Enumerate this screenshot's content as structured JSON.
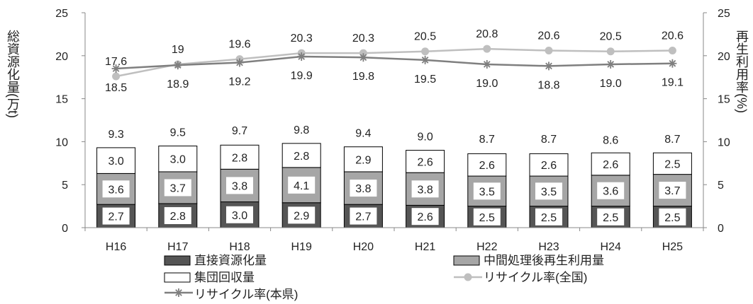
{
  "chart_data": {
    "type": "bar+line",
    "categories": [
      "H16",
      "H17",
      "H18",
      "H19",
      "H20",
      "H21",
      "H22",
      "H23",
      "H24",
      "H25"
    ],
    "stacked_series": [
      {
        "name": "直接資源化量",
        "values": [
          2.7,
          2.8,
          3.0,
          2.9,
          2.7,
          2.6,
          2.5,
          2.5,
          2.5,
          2.5
        ],
        "color": "#555555"
      },
      {
        "name": "中間処理後再生利用量",
        "values": [
          3.6,
          3.7,
          3.8,
          4.1,
          3.8,
          3.8,
          3.5,
          3.5,
          3.6,
          3.7
        ],
        "color": "#a6a6a6"
      },
      {
        "name": "集団回収量",
        "values": [
          3.0,
          3.0,
          2.8,
          2.8,
          2.9,
          2.6,
          2.6,
          2.6,
          2.6,
          2.5
        ],
        "color": "#ffffff"
      }
    ],
    "totals": [
      9.3,
      9.5,
      9.7,
      9.8,
      9.4,
      9.0,
      8.7,
      8.7,
      8.6,
      8.7
    ],
    "line_series": [
      {
        "name": "リサイクル率(全国)",
        "values": [
          "17.6",
          "19",
          "19.6",
          "20.3",
          "20.3",
          "20.5",
          "20.8",
          "20.6",
          "20.5",
          "20.6"
        ],
        "color": "#bfbfbf",
        "marker": "circle"
      },
      {
        "name": "リサイクル率(本県)",
        "values": [
          "18.5",
          "18.9",
          "19.2",
          "19.9",
          "19.8",
          "19.5",
          "19.0",
          "18.8",
          "19.0",
          "19.1"
        ],
        "color": "#7f7f7f",
        "marker": "asterisk"
      }
    ],
    "ylabel": "総資源化量(万t)",
    "y2label": "再生利用率(%)",
    "ylim": [
      0,
      25
    ],
    "y2lim": [
      0,
      25
    ],
    "yticks": [
      "0",
      "5",
      "10",
      "15",
      "20",
      "25"
    ],
    "y2ticks": [
      "0",
      "5",
      "10",
      "15",
      "20",
      "25"
    ],
    "legend": [
      "直接資源化量",
      "中間処理後再生利用量",
      "集団回収量",
      "リサイクル率(全国)",
      "リサイクル率(本県)"
    ]
  }
}
